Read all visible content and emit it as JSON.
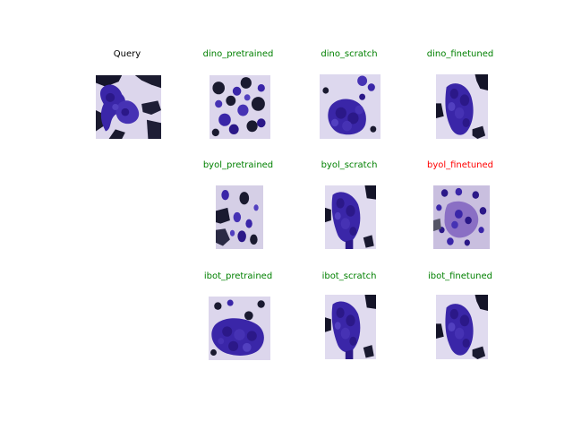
{
  "colors": {
    "neutral": "#000000",
    "match": "#008000",
    "mismatch": "#ff0000",
    "tissue_bg": "#d9d3ea",
    "cell_dark": "#2d1a8a",
    "cell_mid": "#4530b0",
    "shadow": "#15152a"
  },
  "query": {
    "title": "Query",
    "status": "neutral",
    "image_icon": "cell-cluster-image"
  },
  "rows": [
    {
      "results": [
        {
          "title": "dino_pretrained",
          "status": "match",
          "image_icon": "cell-cluster-image"
        },
        {
          "title": "dino_scratch",
          "status": "match",
          "image_icon": "cell-cluster-image"
        },
        {
          "title": "dino_finetuned",
          "status": "match",
          "image_icon": "cell-cluster-image"
        }
      ]
    },
    {
      "results": [
        {
          "title": "byol_pretrained",
          "status": "match",
          "image_icon": "cell-cluster-image"
        },
        {
          "title": "byol_scratch",
          "status": "match",
          "image_icon": "cell-cluster-image"
        },
        {
          "title": "byol_finetuned",
          "status": "mismatch",
          "image_icon": "cell-cluster-image"
        }
      ]
    },
    {
      "results": [
        {
          "title": "ibot_pretrained",
          "status": "match",
          "image_icon": "cell-cluster-image"
        },
        {
          "title": "ibot_scratch",
          "status": "match",
          "image_icon": "cell-cluster-image"
        },
        {
          "title": "ibot_finetuned",
          "status": "match",
          "image_icon": "cell-cluster-image"
        }
      ]
    }
  ]
}
